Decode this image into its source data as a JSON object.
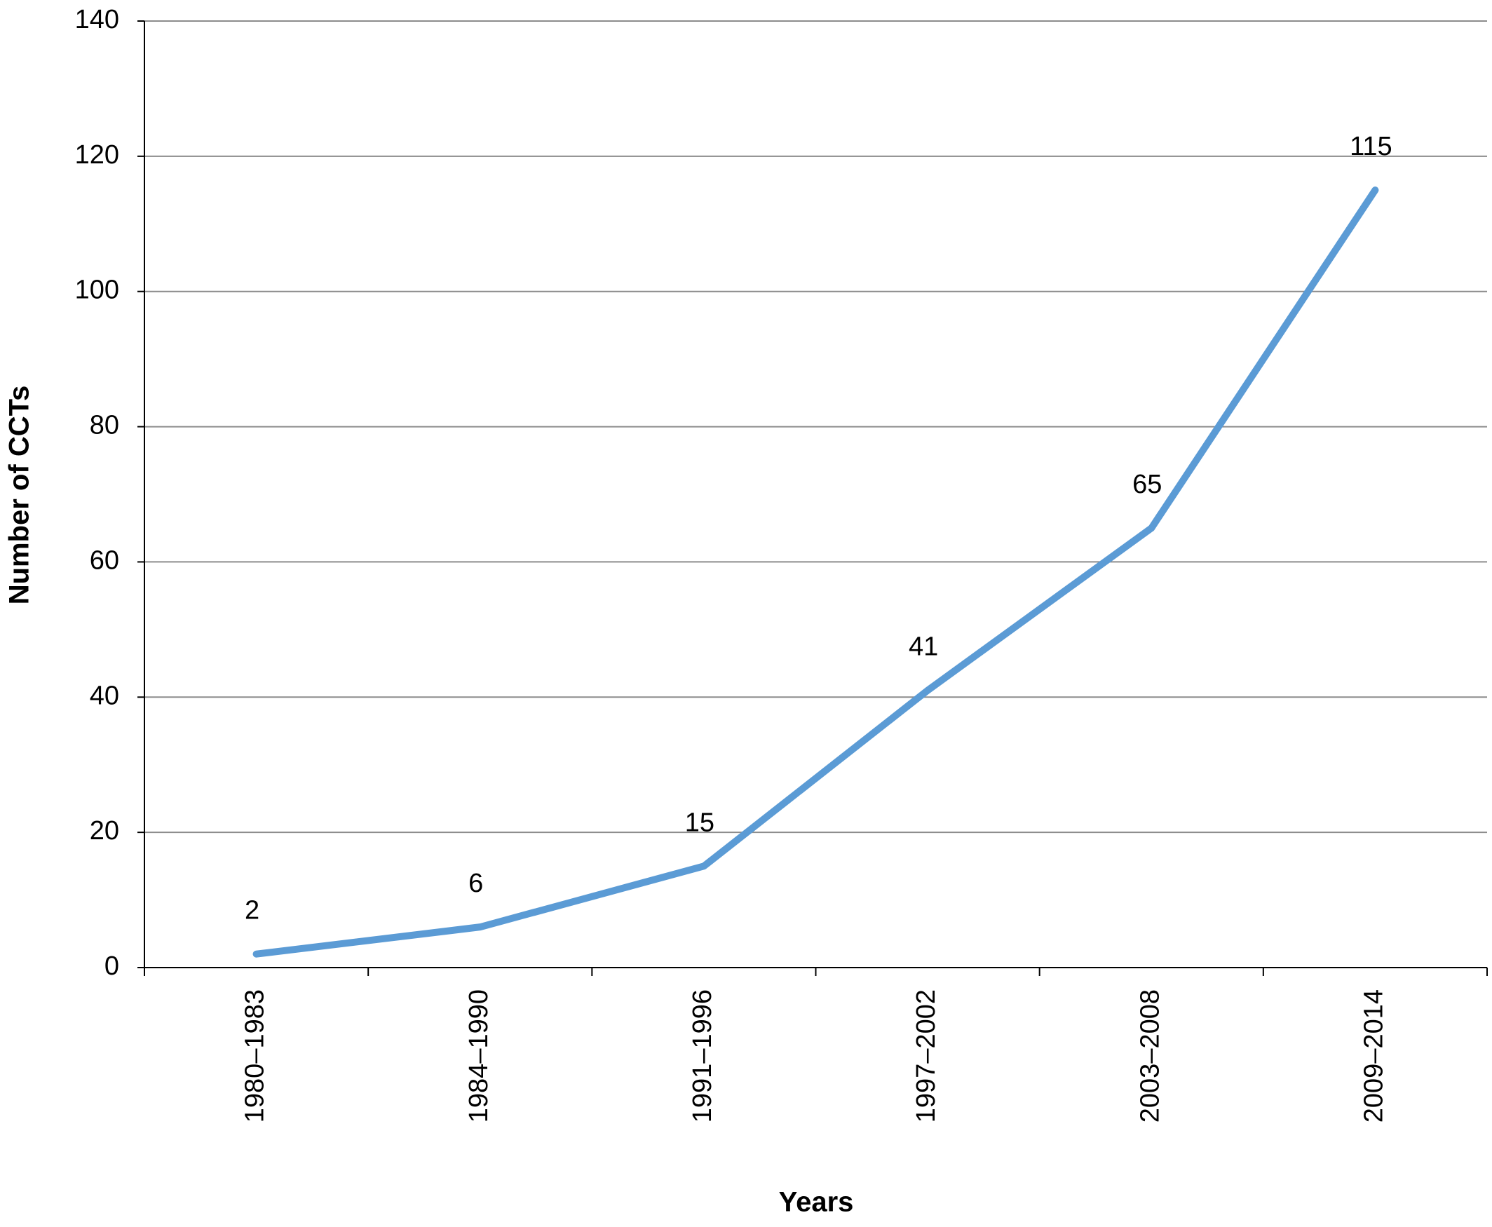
{
  "chart_data": {
    "type": "line",
    "x_label": "Years",
    "y_label": "Number of CCTs",
    "categories": [
      "1980–1983",
      "1984–1990",
      "1991–1996",
      "1997–2002",
      "2003–2008",
      "2009–2014"
    ],
    "values": [
      2,
      6,
      15,
      41,
      65,
      115
    ],
    "color": "#5b9bd5",
    "ylim": [
      0,
      140
    ],
    "yticks": [
      0,
      20,
      40,
      60,
      80,
      100,
      120,
      140
    ],
    "grid": true
  }
}
